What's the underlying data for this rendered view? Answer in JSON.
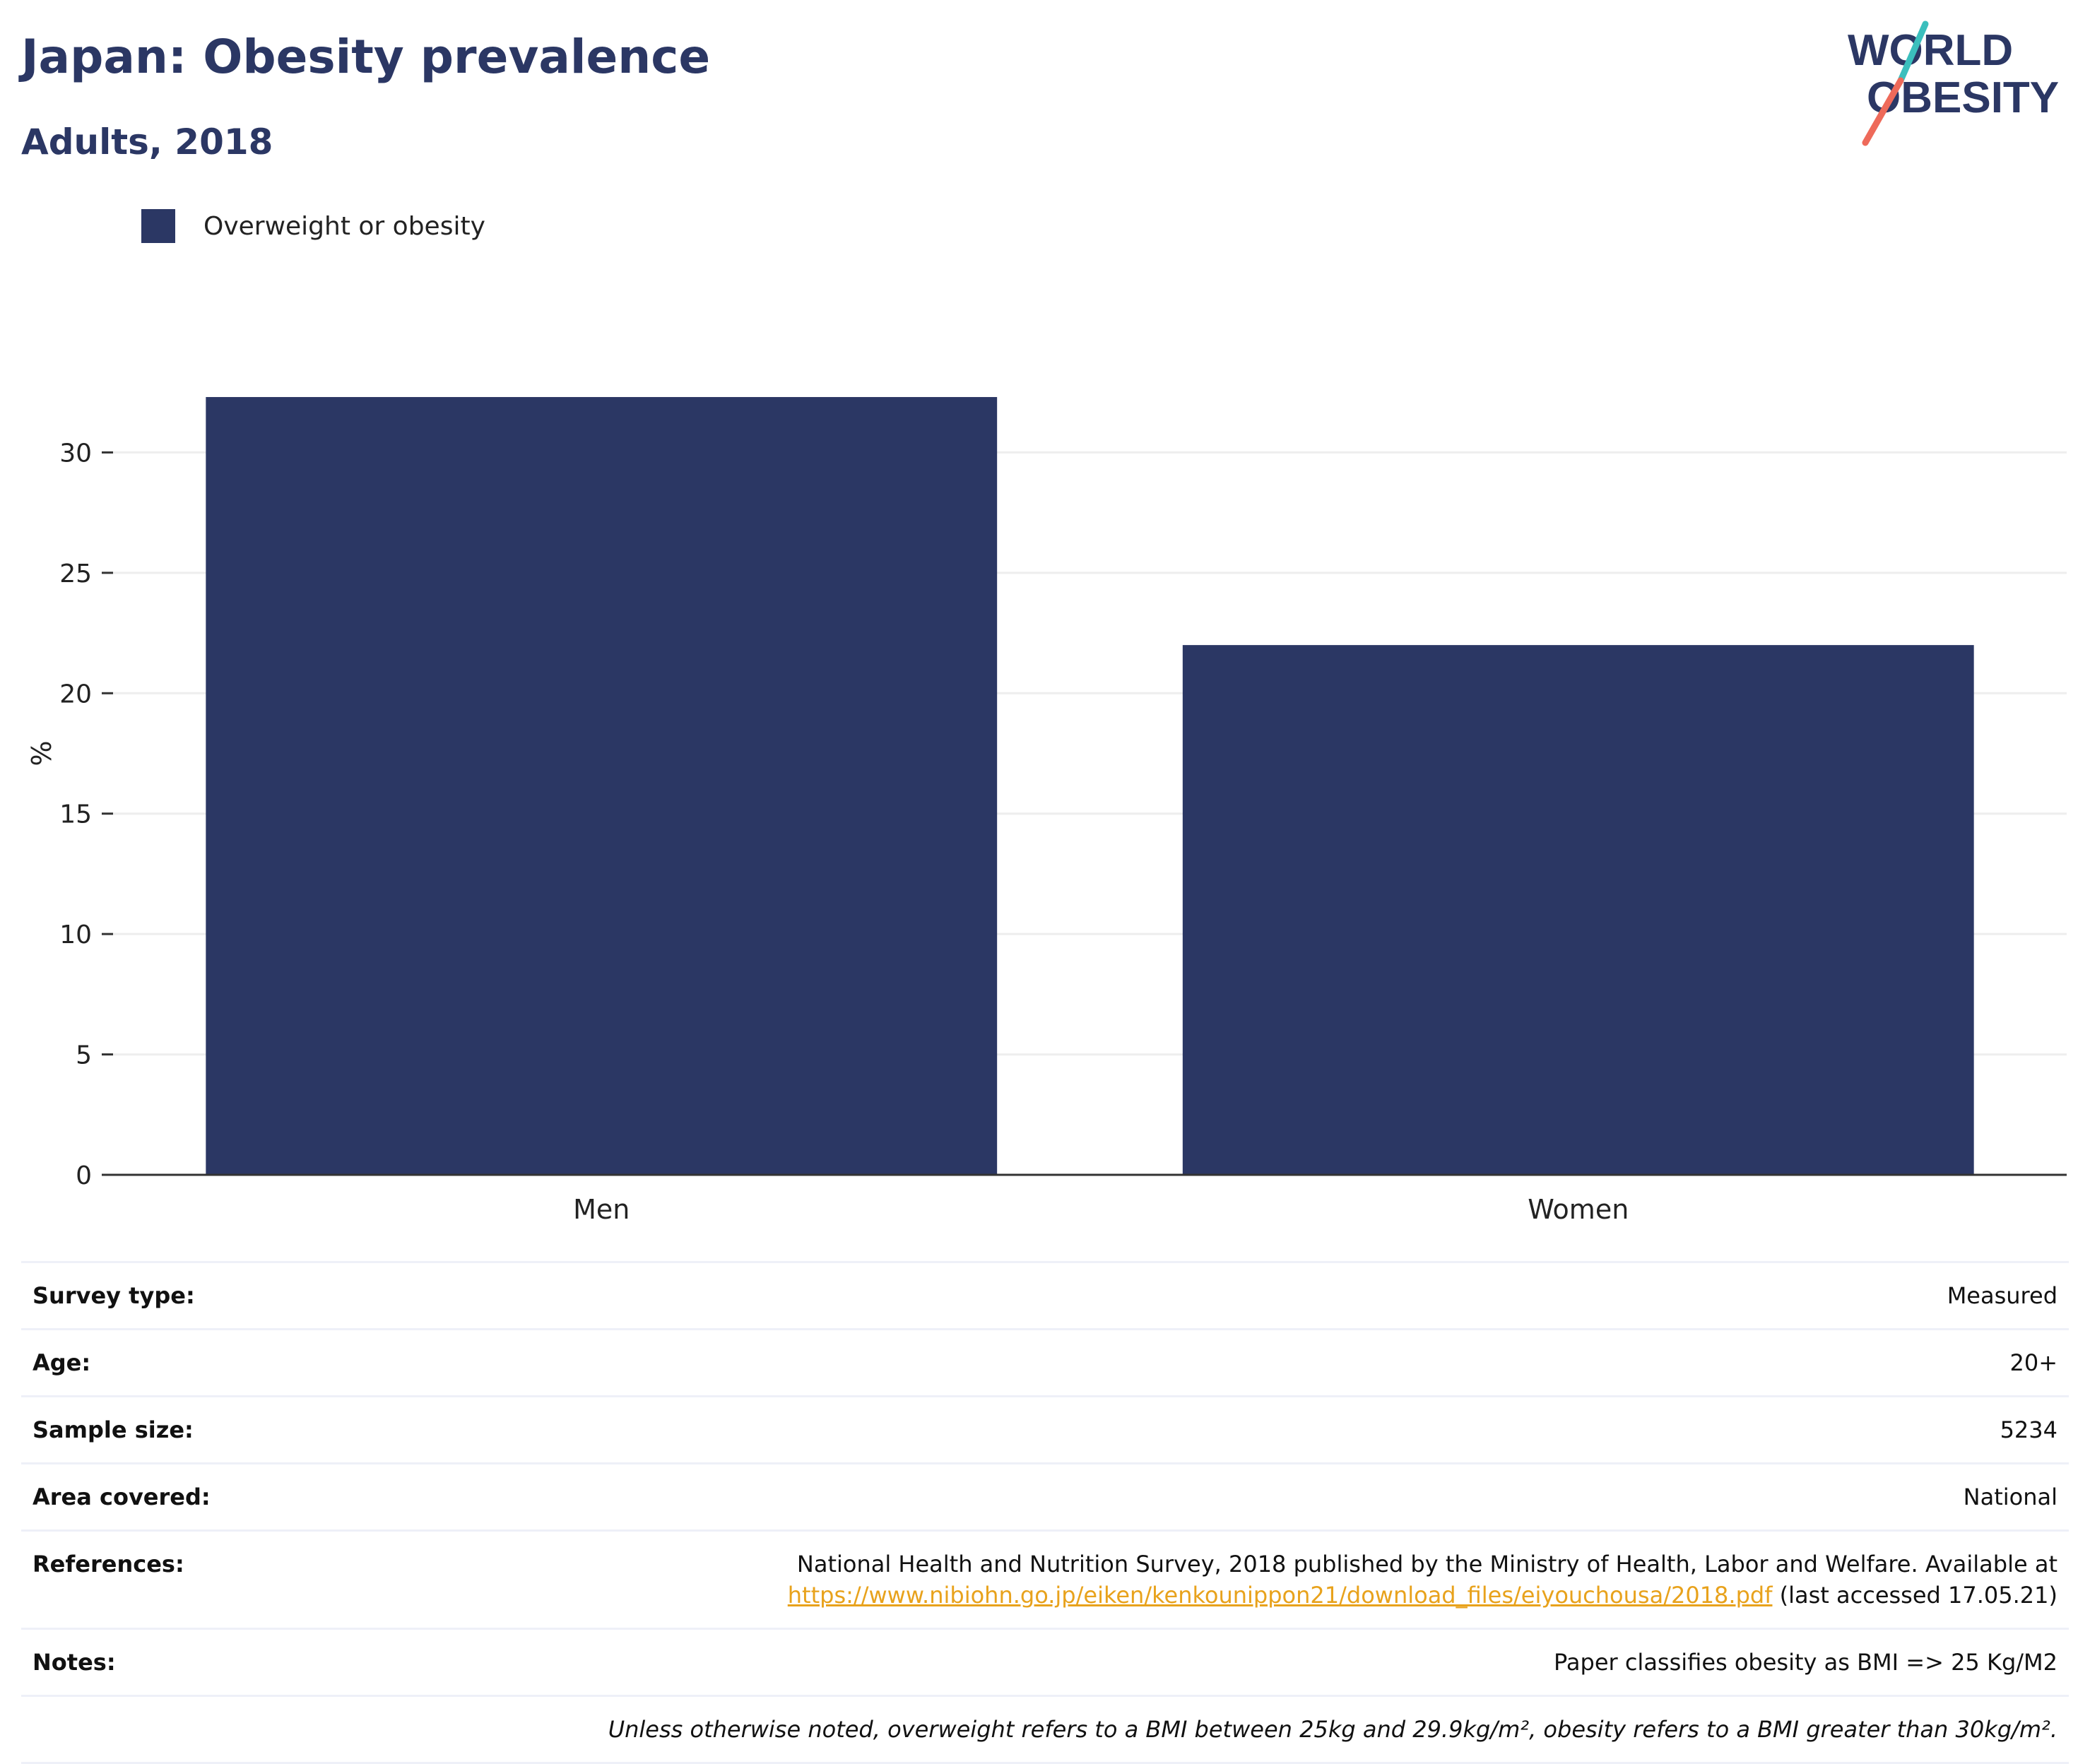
{
  "header": {
    "title": "Japan: Obesity prevalence",
    "subtitle": "Adults, 2018"
  },
  "logo": {
    "line1": "WORLD",
    "line2": "OBESITY"
  },
  "legend": {
    "label": "Overweight or obesity"
  },
  "colors": {
    "bar": "#2b3764",
    "title": "#2b3764",
    "link": "#e8a21c",
    "logo_slash_top": "#3bbfbd",
    "logo_slash_bottom": "#ee6a5a",
    "gridline": "#eeeeee",
    "axis": "#333333"
  },
  "chart_data": {
    "type": "bar",
    "categories": [
      "Men",
      "Women"
    ],
    "series": [
      {
        "name": "Overweight or obesity",
        "values": [
          32.3,
          22.0
        ]
      }
    ],
    "ylabel": "%",
    "xlabel": "",
    "ylim": [
      0,
      35
    ],
    "yticks": [
      0,
      5,
      10,
      15,
      20,
      25,
      30
    ],
    "grid": true,
    "legend_position": "top-left"
  },
  "details": {
    "survey_type": {
      "label": "Survey type:",
      "value": "Measured"
    },
    "age": {
      "label": "Age:",
      "value": "20+"
    },
    "sample_size": {
      "label": "Sample size:",
      "value": "5234"
    },
    "area_covered": {
      "label": "Area covered:",
      "value": "National"
    },
    "references": {
      "label": "References:",
      "text": "National Health and Nutrition Survey, 2018 published by the Ministry of Health, Labor and Welfare. Available at",
      "link": "https://www.nibiohn.go.jp/eiken/kenkounippon21/download_files/eiyouchousa/2018.pdf",
      "suffix": "(last accessed 17.05.21)"
    },
    "notes": {
      "label": "Notes:",
      "value": "Paper classifies obesity as BMI => 25 Kg/M2"
    },
    "footnote": "Unless otherwise noted, overweight refers to a BMI between 25kg and 29.9kg/m², obesity refers to a BMI greater than 30kg/m²."
  }
}
